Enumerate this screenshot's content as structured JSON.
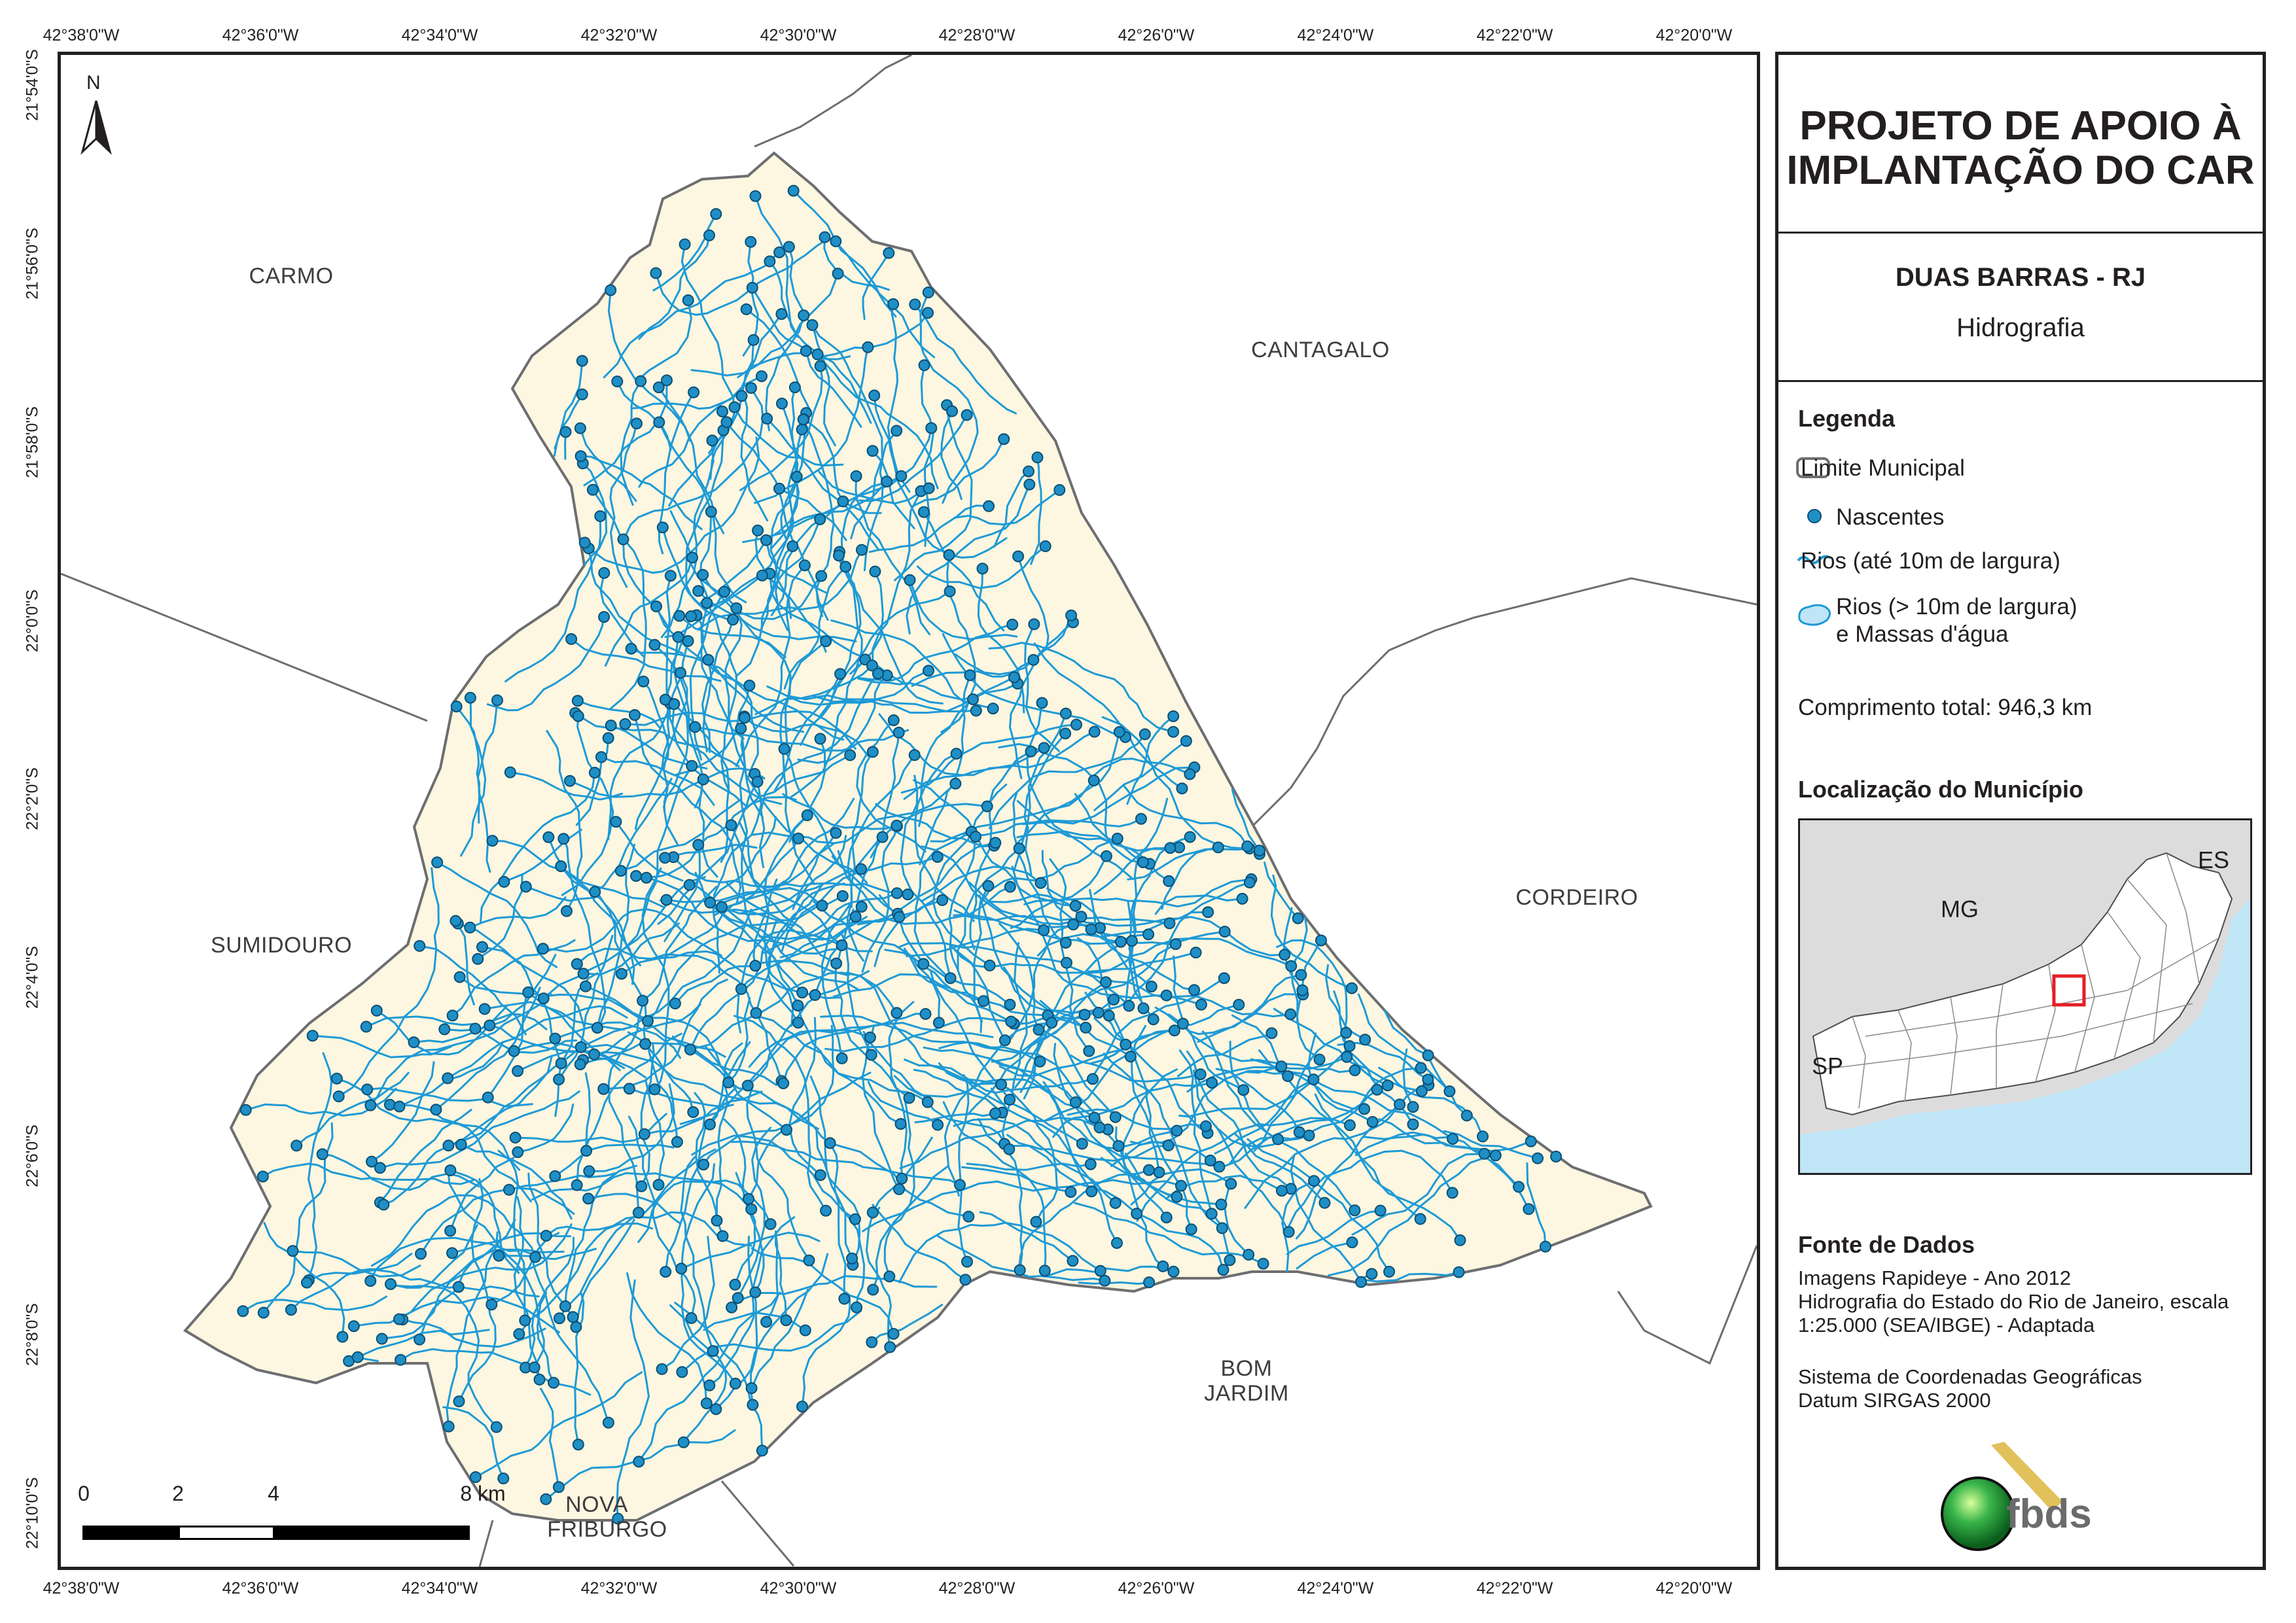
{
  "map": {
    "top_ticks": [
      "42°38'0\"W",
      "42°36'0\"W",
      "42°34'0\"W",
      "42°32'0\"W",
      "42°30'0\"W",
      "42°28'0\"W",
      "42°26'0\"W",
      "42°24'0\"W",
      "42°22'0\"W",
      "42°20'0\"W"
    ],
    "bottom_ticks": [
      "42°38'0\"W",
      "42°36'0\"W",
      "42°34'0\"W",
      "42°32'0\"W",
      "42°30'0\"W",
      "42°28'0\"W",
      "42°26'0\"W",
      "42°24'0\"W",
      "42°22'0\"W",
      "42°20'0\"W"
    ],
    "left_ticks": [
      "21°54'0\"S",
      "21°56'0\"S",
      "21°58'0\"S",
      "22°0'0\"S",
      "22°2'0\"S",
      "22°4'0\"S",
      "22°6'0\"S",
      "22°8'0\"S",
      "22°10'0\"S"
    ],
    "places": {
      "carmo": "CARMO",
      "cantagalo": "CANTAGALO",
      "cordeiro": "CORDEIRO",
      "sumidouro": "SUMIDOURO",
      "bom_jardim_1": "BOM",
      "bom_jardim_2": "JARDIM",
      "nova_friburgo_1": "NOVA",
      "nova_friburgo_2": "FRIBURGO"
    },
    "north_letter": "N",
    "scale": {
      "l0": "0",
      "l2": "2",
      "l4": "4",
      "l8": "8 km"
    },
    "colors": {
      "municipality_fill": "#fdf6e0",
      "river": "#1e9ad6",
      "spring": "#1f8fc6",
      "boundary": "#6d6e71"
    }
  },
  "panel": {
    "title_1": "PROJETO DE APOIO À",
    "title_2": "IMPLANTAÇÃO DO CAR",
    "subtitle": "DUAS BARRAS - RJ",
    "theme": "Hidrografia",
    "legend_head": "Legenda",
    "legend": {
      "limite": "Limite Municipal",
      "nascentes": "Nascentes",
      "rios_small": "Rios (até 10m de largura)",
      "rios_large_1": "Rios (> 10m de largura)",
      "rios_large_2": "e Massas d'água"
    },
    "length": "Comprimento total: 946,3 km",
    "locator_head": "Localização do Município",
    "locator": {
      "mg": "MG",
      "es": "ES",
      "sp": "SP"
    },
    "source_head": "Fonte de Dados",
    "source": [
      "Imagens Rapideye - Ano 2012",
      "Hidrografia do Estado do Rio de Janeiro, escala",
      "1:25.000 (SEA/IBGE) - Adaptada",
      "",
      "Sistema de Coordenadas Geográficas",
      "Datum SIRGAS 2000"
    ],
    "logo_text": "fbds"
  }
}
